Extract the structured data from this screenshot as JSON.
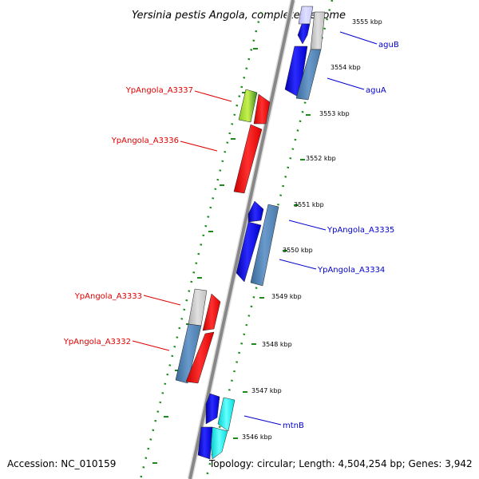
{
  "title": "Yersinia pestis Angola, complete genome",
  "footer": {
    "accession": "Accession: NC_010159",
    "summary": "Topology: circular; Length: 4,504,254 bp; Genes: 3,942"
  },
  "colors": {
    "forward_label": "#0000cc",
    "reverse_label": "#dd0000",
    "backbone": "#888888",
    "ticks": "#1a8a1a"
  },
  "ticks": [
    "3555 kbp",
    "3554 kbp",
    "3553 kbp",
    "3552 kbp",
    "3551 kbp",
    "3550 kbp",
    "3549 kbp",
    "3548 kbp",
    "3547 kbp",
    "3546 kbp"
  ],
  "genes": [
    {
      "label": "aguB",
      "strand": "forward"
    },
    {
      "label": "aguA",
      "strand": "forward"
    },
    {
      "label": "YpAngola_A3337",
      "strand": "reverse"
    },
    {
      "label": "YpAngola_A3336",
      "strand": "reverse"
    },
    {
      "label": "YpAngola_A3335",
      "strand": "forward"
    },
    {
      "label": "YpAngola_A3334",
      "strand": "forward"
    },
    {
      "label": "YpAngola_A3333",
      "strand": "reverse"
    },
    {
      "label": "YpAngola_A3332",
      "strand": "reverse"
    },
    {
      "label": "mtnB",
      "strand": "forward"
    }
  ]
}
